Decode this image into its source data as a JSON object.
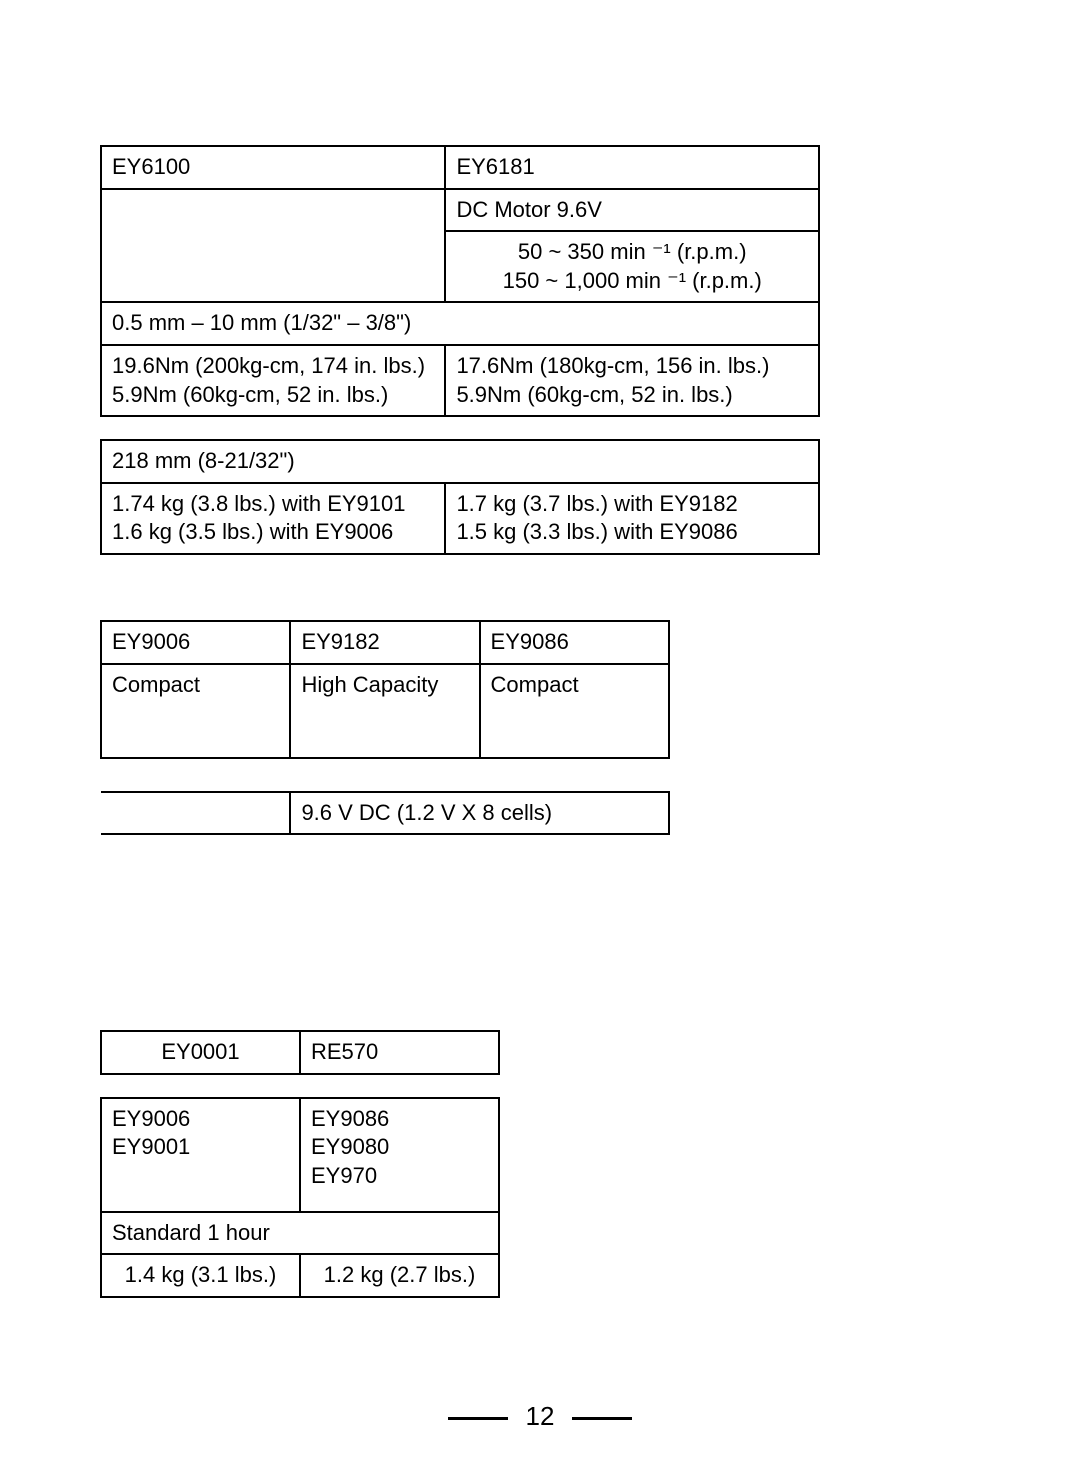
{
  "t1": {
    "r1": {
      "c1": "EY6100",
      "c2": "EY6181"
    },
    "r2": {
      "c2": "DC Motor 9.6V"
    },
    "r3": {
      "c2": "50 ~ 350 min ⁻¹ (r.p.m.)\n150 ~ 1,000 min ⁻¹ (r.p.m.)"
    },
    "r4": {
      "c1": "0.5 mm  –  10 mm  (1/32\"  –  3/8\")"
    },
    "r5": {
      "c1": "19.6Nm  (200kg-cm, 174 in. lbs.)\n5.9Nm  (60kg-cm, 52 in. lbs.)",
      "c2": "17.6Nm  (180kg-cm, 156 in. lbs.)\n5.9Nm  (60kg-cm, 52 in. lbs.)"
    },
    "r6": {
      "c1": "218 mm  (8-21/32\")"
    },
    "r7": {
      "c1": "1.74 kg  (3.8 lbs.)  with EY9101\n1.6 kg  (3.5 lbs.)  with EY9006",
      "c2": "1.7 kg  (3.7 lbs.)  with EY9182\n1.5 kg  (3.3 lbs.)  with EY9086"
    }
  },
  "t2": {
    "r1": {
      "c1": "EY9006",
      "c2": "EY9182",
      "c3": "EY9086"
    },
    "r2": {
      "c1": "Compact",
      "c2": "High Capacity",
      "c3": "Compact"
    },
    "r3": {
      "c2": "9.6 V DC (1.2 V  X  8 cells)"
    }
  },
  "t3": {
    "r1": {
      "c1": "EY0001",
      "c2": "RE570"
    },
    "r2": {
      "c1": "EY9006\nEY9001",
      "c2": "EY9086\nEY9080\nEY970"
    },
    "r3": {
      "c1": "Standard 1 hour"
    },
    "r4": {
      "c1": "1.4 kg  (3.1 lbs.)",
      "c2": "1.2 kg  (2.7 lbs.)"
    }
  },
  "page": "12"
}
